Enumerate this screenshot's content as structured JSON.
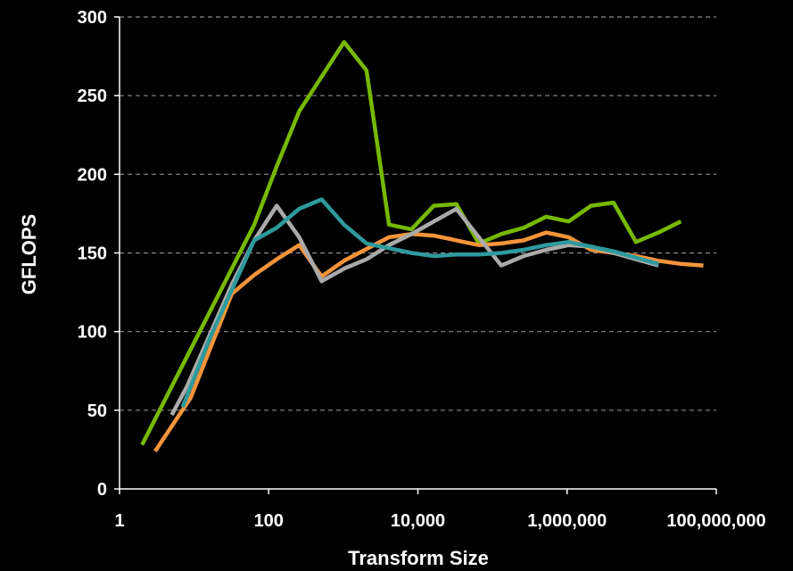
{
  "chart_data": {
    "type": "line",
    "xlabel": "Transform Size",
    "ylabel": "GFLOPS",
    "x_scale": "log10",
    "xlim": [
      1,
      100000000
    ],
    "ylim": [
      0,
      300
    ],
    "y_ticks": [
      0,
      50,
      100,
      150,
      200,
      250,
      300
    ],
    "x_ticks": [
      1,
      100,
      10000,
      1000000,
      100000000
    ],
    "x_tick_labels": [
      "1",
      "100",
      "10,000",
      "1,000,000",
      "100,000,000"
    ],
    "grid": true,
    "series": [
      {
        "color": "#76b900",
        "points": [
          [
            2,
            28
          ],
          [
            64,
            168
          ],
          [
            128,
            205
          ],
          [
            256,
            240
          ],
          [
            1024,
            284
          ],
          [
            2048,
            266
          ],
          [
            4096,
            168
          ],
          [
            8192,
            165
          ],
          [
            16384,
            180
          ],
          [
            32768,
            181
          ],
          [
            65536,
            156
          ],
          [
            131072,
            162
          ],
          [
            262144,
            166
          ],
          [
            524288,
            173
          ],
          [
            1048576,
            170
          ],
          [
            2097152,
            180
          ],
          [
            4194304,
            182
          ],
          [
            8388608,
            157
          ],
          [
            16777216,
            163
          ],
          [
            33554432,
            170
          ]
        ]
      },
      {
        "color": "#f5943b",
        "points": [
          [
            3,
            24
          ],
          [
            9,
            58
          ],
          [
            32,
            124
          ],
          [
            64,
            136
          ],
          [
            128,
            146
          ],
          [
            256,
            155
          ],
          [
            512,
            135
          ],
          [
            1024,
            145
          ],
          [
            4096,
            160
          ],
          [
            8192,
            162
          ],
          [
            16384,
            161
          ],
          [
            32768,
            158
          ],
          [
            65536,
            155
          ],
          [
            131072,
            156
          ],
          [
            262144,
            158
          ],
          [
            524288,
            163
          ],
          [
            1048576,
            160
          ],
          [
            2097152,
            152
          ],
          [
            4194304,
            150
          ],
          [
            8388608,
            148
          ],
          [
            16777216,
            145
          ],
          [
            33554432,
            143
          ],
          [
            67108864,
            142
          ]
        ]
      },
      {
        "color": "#aaaaaa",
        "points": [
          [
            5,
            47
          ],
          [
            8,
            65
          ],
          [
            32,
            130
          ],
          [
            64,
            158
          ],
          [
            128,
            180
          ],
          [
            256,
            160
          ],
          [
            512,
            132
          ],
          [
            1024,
            140
          ],
          [
            2048,
            146
          ],
          [
            4096,
            155
          ],
          [
            8192,
            162
          ],
          [
            16384,
            170
          ],
          [
            32768,
            178
          ],
          [
            65536,
            160
          ],
          [
            131072,
            142
          ],
          [
            262144,
            148
          ],
          [
            524288,
            152
          ],
          [
            1048576,
            155
          ],
          [
            2097152,
            154
          ],
          [
            4194304,
            150
          ],
          [
            8388608,
            146
          ],
          [
            16777216,
            142
          ]
        ]
      },
      {
        "color": "#2e9a9c",
        "points": [
          [
            7,
            52
          ],
          [
            16,
            95
          ],
          [
            64,
            158
          ],
          [
            128,
            166
          ],
          [
            256,
            178
          ],
          [
            512,
            184
          ],
          [
            1024,
            168
          ],
          [
            2048,
            156
          ],
          [
            4096,
            153
          ],
          [
            8192,
            150
          ],
          [
            16384,
            148
          ],
          [
            32768,
            149
          ],
          [
            65536,
            149
          ],
          [
            131072,
            150
          ],
          [
            262144,
            152
          ],
          [
            524288,
            155
          ],
          [
            1048576,
            157
          ],
          [
            2097152,
            154
          ],
          [
            4194304,
            151
          ],
          [
            8388608,
            147
          ],
          [
            16777216,
            143
          ]
        ]
      }
    ]
  }
}
